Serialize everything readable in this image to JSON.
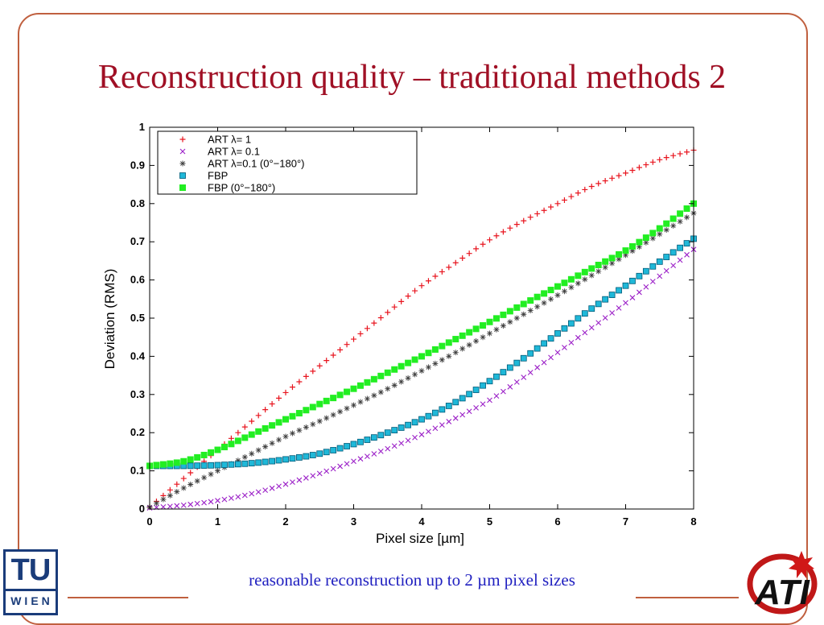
{
  "slide": {
    "title": "Reconstruction quality – traditional methods 2",
    "caption": "reasonable reconstruction up to 2 µm pixel sizes"
  },
  "logos": {
    "left": {
      "line1": "TU",
      "line2": "WIEN"
    },
    "right": {
      "text": "ATI"
    }
  },
  "chart_data": {
    "type": "scatter",
    "title": "",
    "xlabel": "Pixel  size [µm]",
    "ylabel": "Deviation (RMS)",
    "xlim": [
      0,
      8
    ],
    "ylim": [
      0,
      1
    ],
    "xticks": [
      "0",
      "1",
      "2",
      "3",
      "4",
      "5",
      "6",
      "7",
      "8"
    ],
    "yticks": [
      "0",
      "0.1",
      "0.2",
      "0.3",
      "0.4",
      "0.5",
      "0.6",
      "0.7",
      "0.8",
      "0.9",
      "1"
    ],
    "legend_position": "top-left",
    "grid": false,
    "series": [
      {
        "name": "ART λ= 1",
        "marker": "plus",
        "color": "#e8141e",
        "x": [
          0,
          0.5,
          1,
          1.5,
          2,
          2.5,
          3,
          3.5,
          4,
          4.5,
          5,
          5.5,
          6,
          6.5,
          7,
          7.5,
          8
        ],
        "y": [
          0.005,
          0.08,
          0.155,
          0.23,
          0.305,
          0.375,
          0.445,
          0.515,
          0.585,
          0.645,
          0.705,
          0.755,
          0.8,
          0.845,
          0.88,
          0.915,
          0.94
        ]
      },
      {
        "name": "ART λ= 0.1",
        "marker": "x",
        "color": "#9b1fc7",
        "x": [
          0,
          0.5,
          1,
          1.5,
          2,
          2.5,
          3,
          3.5,
          4,
          4.5,
          5,
          5.5,
          6,
          6.5,
          7,
          7.5,
          8
        ],
        "y": [
          0.003,
          0.01,
          0.022,
          0.04,
          0.065,
          0.093,
          0.125,
          0.158,
          0.195,
          0.238,
          0.285,
          0.345,
          0.41,
          0.475,
          0.54,
          0.61,
          0.68
        ]
      },
      {
        "name": "ART λ=0.1 (0°−180°)",
        "marker": "star",
        "color": "#404040",
        "x": [
          0,
          0.5,
          1,
          1.5,
          2,
          2.5,
          3,
          3.5,
          4,
          4.5,
          5,
          5.5,
          6,
          6.5,
          7,
          7.5,
          8
        ],
        "y": [
          0.005,
          0.055,
          0.1,
          0.145,
          0.19,
          0.23,
          0.272,
          0.315,
          0.362,
          0.41,
          0.46,
          0.51,
          0.56,
          0.612,
          0.665,
          0.72,
          0.775
        ]
      },
      {
        "name": "FBP",
        "marker": "square-open",
        "color": "#1fb8d8",
        "x": [
          0,
          0.5,
          1,
          1.5,
          2,
          2.5,
          3,
          3.5,
          4,
          4.5,
          5,
          5.5,
          6,
          6.5,
          7,
          7.5,
          8
        ],
        "y": [
          0.113,
          0.113,
          0.115,
          0.12,
          0.13,
          0.145,
          0.17,
          0.2,
          0.235,
          0.28,
          0.335,
          0.395,
          0.46,
          0.525,
          0.585,
          0.648,
          0.708
        ]
      },
      {
        "name": "FBP (0°−180°)",
        "marker": "square-filled",
        "color": "#22ee22",
        "x": [
          0,
          0.5,
          1,
          1.5,
          2,
          2.5,
          3,
          3.5,
          4,
          4.5,
          5,
          5.5,
          6,
          6.5,
          7,
          7.5,
          8
        ],
        "y": [
          0.113,
          0.125,
          0.155,
          0.195,
          0.235,
          0.275,
          0.315,
          0.357,
          0.4,
          0.445,
          0.49,
          0.537,
          0.583,
          0.63,
          0.677,
          0.735,
          0.8
        ]
      }
    ]
  }
}
